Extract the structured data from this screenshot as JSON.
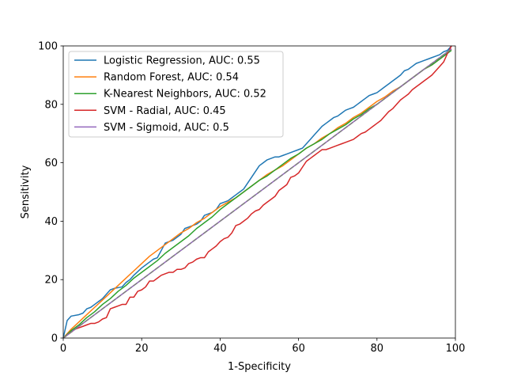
{
  "chart_data": {
    "type": "line",
    "title": "",
    "xlabel": "1-Specificity",
    "ylabel": "Sensitivity",
    "xlim": [
      0,
      100
    ],
    "ylim": [
      0,
      100
    ],
    "xticks": [
      0,
      20,
      40,
      60,
      80,
      100
    ],
    "yticks": [
      0,
      20,
      40,
      60,
      80,
      100
    ],
    "grid": false,
    "legend_position": "top-left",
    "series": [
      {
        "name": "Logistic Regression, AUC: 0.55",
        "color": "#1f77b4",
        "style": "solid",
        "x": [
          0,
          1,
          2,
          4,
          5,
          6,
          7,
          8,
          9,
          10,
          11,
          12,
          13,
          15,
          16,
          17,
          18,
          20,
          21,
          22,
          23,
          24,
          25,
          26,
          27,
          28,
          30,
          31,
          32,
          34,
          35,
          36,
          38,
          39,
          40,
          41,
          42,
          43,
          44,
          45,
          46,
          47,
          48,
          49,
          50,
          51,
          52,
          53,
          54,
          55,
          56,
          57,
          58,
          60,
          61,
          62,
          63,
          64,
          65,
          66,
          67,
          68,
          69,
          70,
          71,
          72,
          73,
          74,
          75,
          76,
          77,
          78,
          79,
          80,
          81,
          82,
          83,
          84,
          85,
          86,
          87,
          88,
          89,
          90,
          91,
          92,
          93,
          94,
          95,
          96,
          97,
          98,
          99
        ],
        "y": [
          0,
          6,
          7.5,
          8,
          8.5,
          10,
          10.5,
          11.5,
          12.5,
          13.5,
          15,
          16.5,
          17,
          17.5,
          19,
          20,
          21.5,
          24,
          25,
          26,
          27,
          27.5,
          30,
          32.5,
          33,
          33.5,
          35.5,
          37.5,
          38,
          39,
          40,
          42,
          43,
          44,
          46,
          46.5,
          47,
          48,
          49,
          50,
          51,
          53,
          55,
          57,
          59,
          60,
          61,
          61.5,
          62,
          62,
          62.5,
          63,
          63.5,
          64.5,
          65,
          66.5,
          68,
          69.5,
          71,
          72.5,
          73.5,
          74.5,
          75.5,
          76,
          77,
          78,
          78.5,
          79,
          80,
          81,
          82,
          83,
          83.5,
          84,
          85,
          86,
          87,
          88,
          89,
          90,
          91.5,
          92,
          93,
          94,
          94.5,
          95,
          95.5,
          96,
          96.5,
          97,
          98,
          98.5,
          100
        ]
      },
      {
        "name": "Random Forest, AUC: 0.54",
        "color": "#ff7f0e",
        "style": "solid",
        "x": [
          0,
          2,
          4,
          6,
          8,
          10,
          12,
          14,
          16,
          18,
          20,
          22,
          24,
          26,
          28,
          30,
          32,
          34,
          36,
          38,
          40,
          42,
          44,
          46,
          48,
          50,
          52,
          54,
          56,
          58,
          60,
          62,
          64,
          66,
          68,
          70,
          72,
          74,
          76,
          78,
          80,
          82,
          84,
          86,
          88,
          90,
          92,
          94,
          96,
          98,
          99
        ],
        "y": [
          0,
          3,
          5.5,
          8,
          10.5,
          13,
          15.5,
          18,
          20.5,
          23,
          25.5,
          28,
          30,
          32,
          34,
          36,
          37.5,
          39.5,
          41,
          43,
          45,
          46.5,
          48,
          50,
          52,
          54,
          56,
          57.5,
          59,
          61,
          63,
          65,
          66.5,
          68.5,
          70,
          72,
          73.5,
          75.5,
          77,
          79,
          81,
          82.5,
          84.5,
          86,
          88,
          90,
          92,
          93.5,
          95.5,
          97.5,
          99
        ]
      },
      {
        "name": "K-Nearest Neighbors, AUC: 0.52",
        "color": "#2ca02c",
        "style": "solid",
        "x": [
          0,
          2,
          4,
          6,
          8,
          10,
          12,
          14,
          16,
          18,
          20,
          22,
          24,
          26,
          28,
          30,
          32,
          34,
          36,
          38,
          40,
          42,
          44,
          46,
          48,
          50,
          52,
          54,
          56,
          58,
          60,
          62,
          64,
          66,
          68,
          70,
          72,
          74,
          76,
          78,
          80,
          82,
          84,
          86,
          88,
          90,
          92,
          94,
          96,
          98,
          99
        ],
        "y": [
          0,
          2.5,
          4.5,
          7,
          9,
          11.5,
          13.5,
          16,
          18,
          20.5,
          22.5,
          24.5,
          26.5,
          29,
          31,
          33,
          35,
          37.5,
          39.5,
          41.5,
          44,
          46,
          48,
          50,
          52,
          54,
          55.5,
          57.5,
          59.5,
          61.5,
          63,
          65,
          66.5,
          68,
          70,
          71.5,
          73,
          75,
          76.5,
          78.5,
          80,
          82,
          84,
          86,
          88,
          90,
          92,
          93.5,
          95.5,
          97.5,
          98.5
        ]
      },
      {
        "name": "SVM - Radial, AUC: 0.45",
        "color": "#d62728",
        "style": "solid",
        "x": [
          0,
          1,
          2,
          3,
          4,
          5,
          6,
          7,
          8,
          9,
          10,
          11,
          12,
          13,
          14,
          15,
          16,
          17,
          18,
          19,
          20,
          21,
          22,
          23,
          24,
          25,
          26,
          27,
          28,
          29,
          30,
          31,
          32,
          33,
          34,
          35,
          36,
          37,
          38,
          39,
          40,
          41,
          42,
          43,
          44,
          45,
          46,
          47,
          48,
          49,
          50,
          51,
          52,
          53,
          54,
          55,
          56,
          57,
          58,
          59,
          60,
          61,
          62,
          63,
          64,
          65,
          66,
          67,
          68,
          69,
          70,
          71,
          72,
          73,
          74,
          75,
          76,
          77,
          78,
          79,
          80,
          81,
          82,
          83,
          84,
          85,
          86,
          87,
          88,
          89,
          90,
          91,
          92,
          93,
          94,
          95,
          96,
          97,
          98,
          99
        ],
        "y": [
          0,
          1,
          2,
          3,
          3.5,
          4,
          4.5,
          5,
          5,
          5.5,
          6.5,
          7,
          10,
          10.5,
          11,
          11.5,
          11.5,
          14,
          14,
          16,
          16.5,
          17.5,
          19.5,
          19.5,
          20.5,
          21.5,
          22,
          22.5,
          22.5,
          23.5,
          23.5,
          24,
          25.5,
          26,
          27,
          27.5,
          27.5,
          29.5,
          30.5,
          31.5,
          33,
          34,
          34.5,
          36,
          38.5,
          39,
          40,
          41,
          42.5,
          43.5,
          44,
          45.5,
          46.5,
          47.5,
          48.5,
          50.5,
          51.5,
          52.5,
          55,
          55.5,
          56.5,
          58.5,
          60.5,
          61.5,
          62.5,
          63.5,
          64.5,
          64.5,
          65,
          65.5,
          66,
          66.5,
          67,
          67.5,
          68,
          69,
          70,
          70.5,
          71.5,
          72.5,
          73.5,
          74.5,
          76,
          77.5,
          78.5,
          80,
          81.5,
          82.5,
          83.5,
          85,
          86,
          87,
          88,
          89,
          90,
          91.5,
          93,
          94.5,
          97.5,
          100
        ]
      },
      {
        "name": "SVM - Sigmoid, AUC: 0.5",
        "color": "#9467bd",
        "style": "solid",
        "x": [
          0,
          99
        ],
        "y": [
          0,
          99
        ]
      },
      {
        "name": "",
        "color": "#7f7f7f",
        "style": "dashed",
        "x": [
          0,
          99
        ],
        "y": [
          0,
          99
        ]
      }
    ]
  }
}
